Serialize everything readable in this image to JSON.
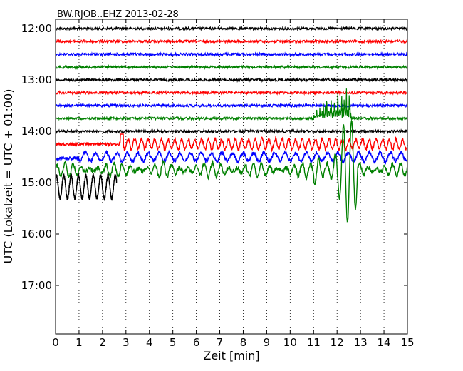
{
  "chart_data": {
    "type": "line",
    "chart_kind": "helicorder (dayplot seismogram)",
    "title": "BW.RJOB..EHZ 2013-02-28",
    "xlabel": "Zeit  [min]",
    "ylabel": "UTC (Lokalzeit = UTC + 01:00)",
    "xlim": [
      0,
      15
    ],
    "x_ticks": [
      "0",
      "1",
      "2",
      "3",
      "4",
      "5",
      "6",
      "7",
      "8",
      "9",
      "10",
      "11",
      "12",
      "13",
      "14",
      "15"
    ],
    "y_tick_labels": [
      "12:00",
      "13:00",
      "14:00",
      "15:00",
      "16:00",
      "17:00"
    ],
    "row_interval_minutes": 15,
    "grid": "vertical dotted lines at each minute",
    "colors_cycle": [
      "#000000",
      "#ff0000",
      "#0000ff",
      "#008000"
    ],
    "rows": [
      {
        "time": "12:00",
        "color": "#000000",
        "activity": "quiet"
      },
      {
        "time": "12:15",
        "color": "#ff0000",
        "activity": "quiet"
      },
      {
        "time": "12:30",
        "color": "#0000ff",
        "activity": "quiet"
      },
      {
        "time": "12:45",
        "color": "#008000",
        "activity": "quiet"
      },
      {
        "time": "13:00",
        "color": "#000000",
        "activity": "quiet"
      },
      {
        "time": "13:15",
        "color": "#ff0000",
        "activity": "quiet"
      },
      {
        "time": "13:30",
        "color": "#0000ff",
        "activity": "quiet"
      },
      {
        "time": "13:45",
        "color": "#008000",
        "activity": "quiet, large spikes from minute 11 to 12.5"
      },
      {
        "time": "14:00",
        "color": "#000000",
        "activity": "quiet"
      },
      {
        "time": "14:15",
        "color": "#ff0000",
        "activity": "moderate oscillation from minute 2.8"
      },
      {
        "time": "14:30",
        "color": "#0000ff",
        "activity": "moderate oscillation"
      },
      {
        "time": "14:45",
        "color": "#008000",
        "activity": "large oscillation, strongest near minute 12.4"
      },
      {
        "time": "15:00",
        "color": "#000000",
        "activity": "large oscillation, data ends at minute 2.6"
      }
    ]
  }
}
